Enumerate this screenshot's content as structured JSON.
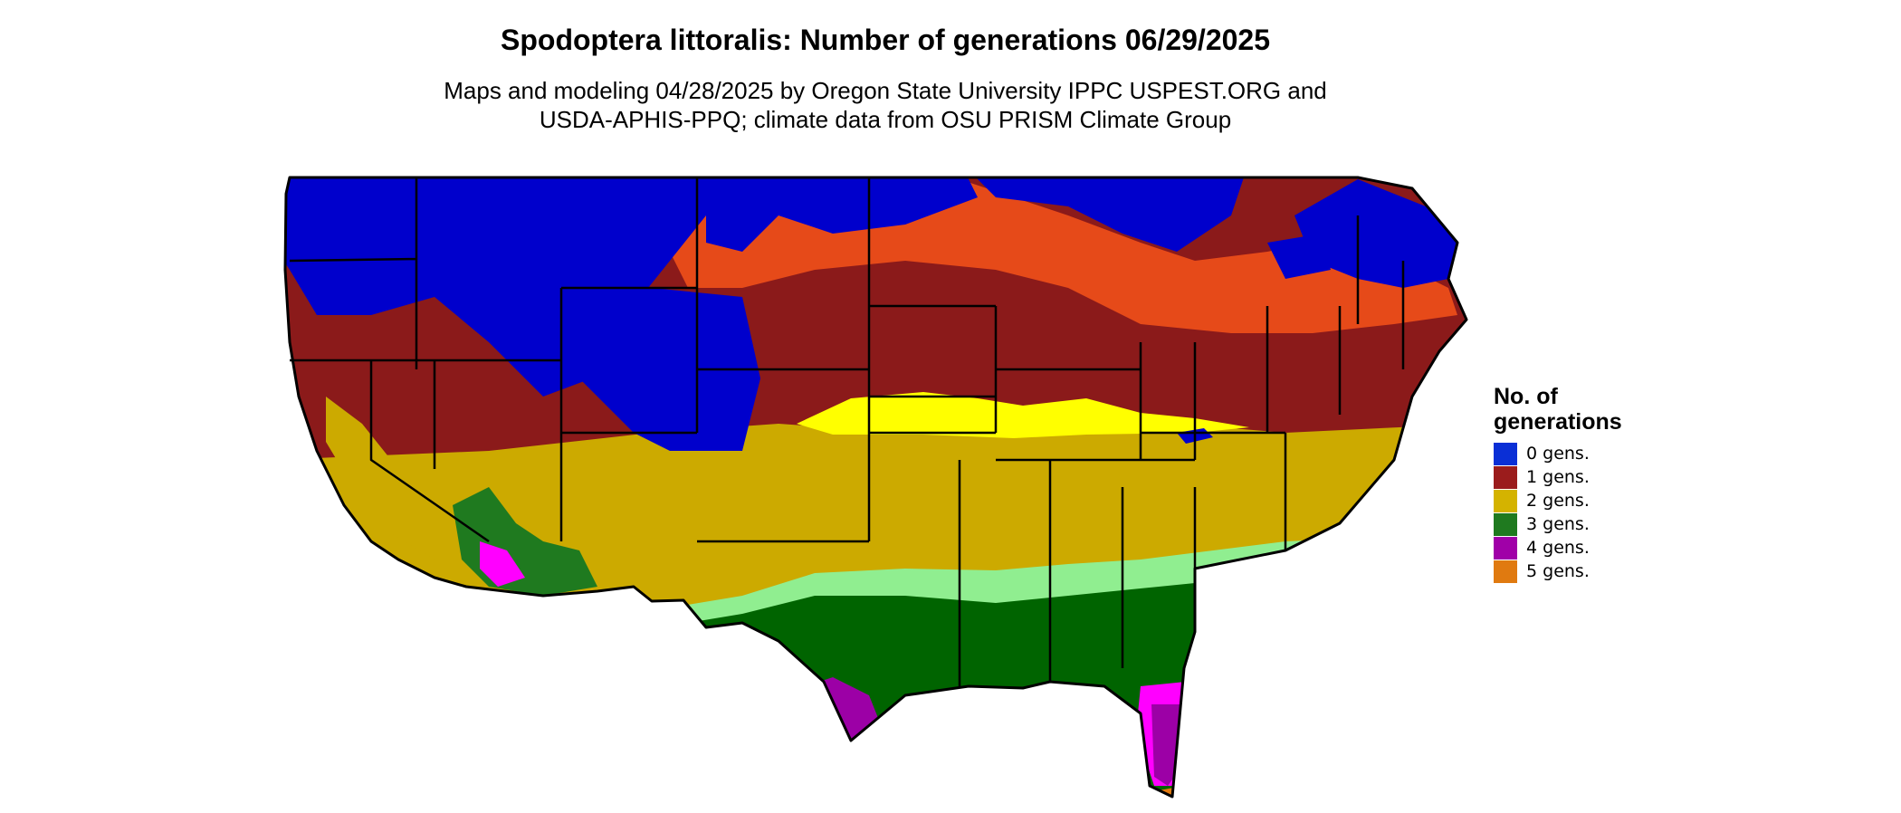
{
  "title": "Spodoptera littoralis: Number of generations 06/29/2025",
  "subtitle": [
    "Maps and modeling 04/28/2025 by Oregon State University IPPC USPEST.ORG and",
    "USDA-APHIS-PPQ; climate data from OSU PRISM Climate Group"
  ],
  "legend": {
    "title": [
      "No. of",
      "generations"
    ],
    "items": [
      {
        "label": "0 gens.",
        "color": "#0a2fd6"
      },
      {
        "label": "1 gens.",
        "color": "#9b1c1c"
      },
      {
        "label": "2 gens.",
        "color": "#d4b300"
      },
      {
        "label": "3 gens.",
        "color": "#1f7a1f"
      },
      {
        "label": "4 gens.",
        "color": "#a000a8"
      },
      {
        "label": "5 gens.",
        "color": "#e07a10"
      }
    ]
  },
  "map_colors": {
    "zero": "#0000cc",
    "one_light": "#ff4500",
    "one_mid": "#e64a19",
    "one": "#8b1a1a",
    "two_bright": "#ffff00",
    "two": "#ccaa00",
    "three_light": "#90ee90",
    "three": "#006400",
    "four_light": "#ff00ff",
    "four": "#9c00a6",
    "five": "#e07a10"
  }
}
